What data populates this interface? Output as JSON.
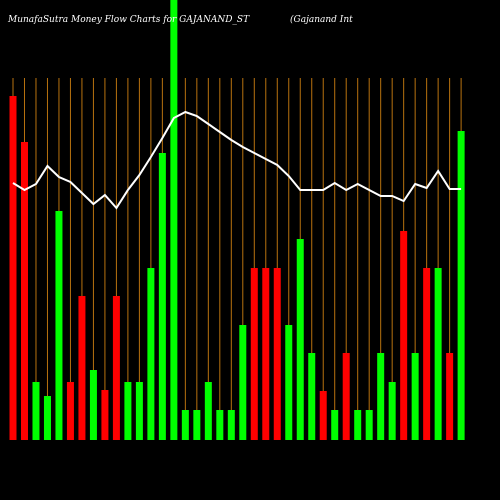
{
  "chart_data": {
    "type": "bar",
    "title": "MunafaSutra  Money Flow  Charts for GAJANAND_ST",
    "subtitle": "(Gajanand Int",
    "ylim": [
      0,
      440
    ],
    "background": "#000000",
    "grid_color": "#b8720f",
    "line_color": "#ffffff",
    "series": [
      {
        "values": [
          344,
          298,
          58,
          44,
          229,
          58,
          144,
          70,
          50,
          144,
          58,
          58,
          172,
          287,
          440,
          30,
          30,
          58,
          30,
          30,
          115,
          172,
          172,
          172,
          115,
          201,
          87,
          49,
          30,
          87,
          30,
          30,
          87,
          58,
          209,
          87,
          172,
          172,
          87,
          309
        ],
        "colors": [
          "#ff0000",
          "#ff0000",
          "#00ff00",
          "#00ff00",
          "#00ff00",
          "#ff0000",
          "#ff0000",
          "#00ff00",
          "#ff0000",
          "#ff0000",
          "#00ff00",
          "#00ff00",
          "#00ff00",
          "#00ff00",
          "#00ff00",
          "#00ff00",
          "#00ff00",
          "#00ff00",
          "#00ff00",
          "#00ff00",
          "#00ff00",
          "#ff0000",
          "#ff0000",
          "#ff0000",
          "#00ff00",
          "#00ff00",
          "#00ff00",
          "#ff0000",
          "#00ff00",
          "#ff0000",
          "#00ff00",
          "#00ff00",
          "#00ff00",
          "#00ff00",
          "#ff0000",
          "#00ff00",
          "#ff0000",
          "#00ff00",
          "#ff0000",
          "#00ff00"
        ]
      },
      {
        "type": "line",
        "values": [
          257,
          250,
          256,
          274,
          263,
          258,
          247,
          236,
          245,
          232,
          250,
          265,
          283,
          302,
          322,
          328,
          324,
          316,
          308,
          300,
          293,
          287,
          281,
          275,
          264,
          250,
          250,
          250,
          257,
          250,
          256,
          250,
          244,
          244,
          239,
          256,
          252,
          269,
          251,
          251
        ]
      }
    ]
  }
}
